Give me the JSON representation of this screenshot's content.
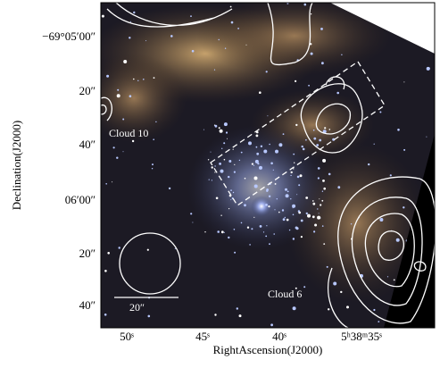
{
  "figure": {
    "y_axis_label": "Declination(J2000)",
    "x_axis_label": "RightAscension(J2000)",
    "y_ticks": [
      "−69°05′00″",
      "20″",
      "40″",
      "06′00″",
      "20″",
      "40″"
    ],
    "x_ticks": [
      "50ˢ",
      "45ˢ",
      "40ˢ",
      "5ʰ38ᵐ35ˢ"
    ],
    "annotations": {
      "cloud_10": "Cloud 10",
      "cloud_6": "Cloud 6",
      "scale": "20″"
    }
  }
}
